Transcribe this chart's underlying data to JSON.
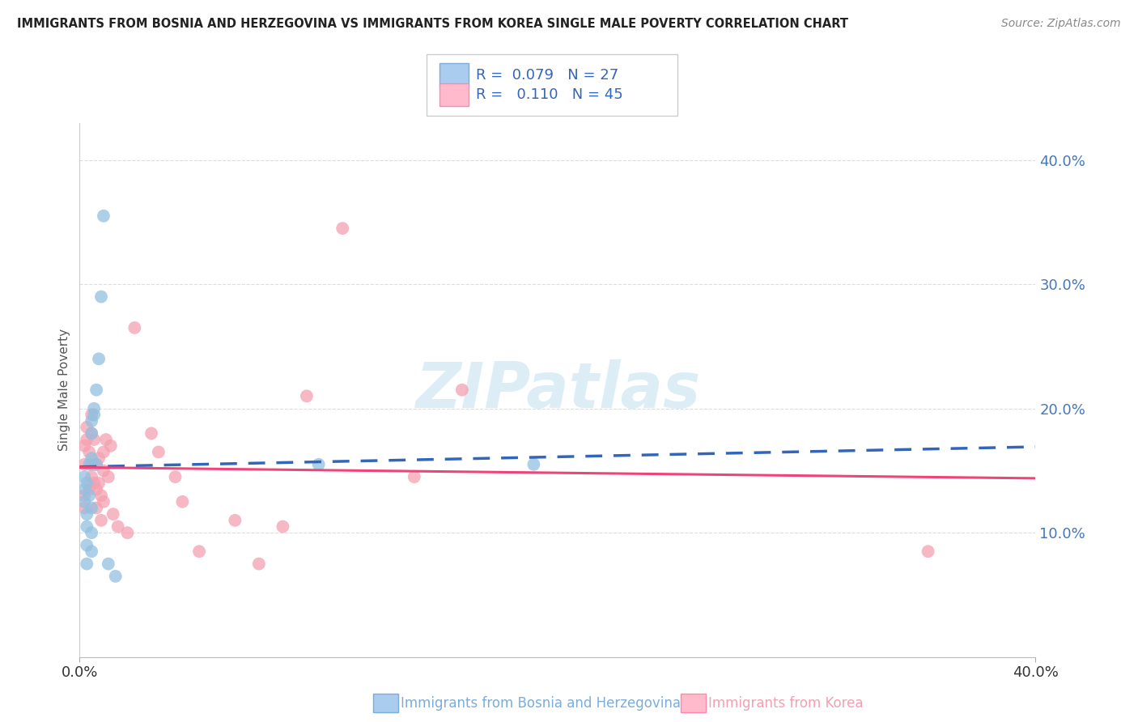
{
  "title": "IMMIGRANTS FROM BOSNIA AND HERZEGOVINA VS IMMIGRANTS FROM KOREA SINGLE MALE POVERTY CORRELATION CHART",
  "source": "Source: ZipAtlas.com",
  "ylabel": "Single Male Poverty",
  "legend1_R": "0.079",
  "legend1_N": "27",
  "legend2_R": "0.110",
  "legend2_N": "45",
  "legend1_label": "Immigrants from Bosnia and Herzegovina",
  "legend2_label": "Immigrants from Korea",
  "blue_scatter_color": "#92C0E0",
  "pink_scatter_color": "#F4A0B0",
  "trend_blue_color": "#3366BB",
  "trend_pink_color": "#EE4477",
  "watermark": "ZIPatlas",
  "xlim": [
    0.0,
    0.4
  ],
  "ylim": [
    0.0,
    0.43
  ],
  "yticks": [
    0.0,
    0.1,
    0.2,
    0.3,
    0.4
  ],
  "blue_x": [
    0.002,
    0.002,
    0.002,
    0.003,
    0.003,
    0.003,
    0.003,
    0.003,
    0.004,
    0.004,
    0.005,
    0.005,
    0.005,
    0.005,
    0.005,
    0.005,
    0.006,
    0.006,
    0.007,
    0.007,
    0.008,
    0.009,
    0.01,
    0.012,
    0.015,
    0.1,
    0.19
  ],
  "blue_y": [
    0.145,
    0.135,
    0.125,
    0.14,
    0.115,
    0.105,
    0.09,
    0.075,
    0.155,
    0.13,
    0.19,
    0.18,
    0.16,
    0.12,
    0.1,
    0.085,
    0.2,
    0.195,
    0.215,
    0.155,
    0.24,
    0.29,
    0.355,
    0.075,
    0.065,
    0.155,
    0.155
  ],
  "pink_x": [
    0.002,
    0.002,
    0.002,
    0.002,
    0.003,
    0.003,
    0.004,
    0.004,
    0.005,
    0.005,
    0.005,
    0.005,
    0.006,
    0.006,
    0.006,
    0.007,
    0.007,
    0.007,
    0.008,
    0.008,
    0.009,
    0.009,
    0.01,
    0.01,
    0.01,
    0.011,
    0.012,
    0.013,
    0.014,
    0.016,
    0.02,
    0.023,
    0.03,
    0.033,
    0.04,
    0.043,
    0.05,
    0.065,
    0.075,
    0.085,
    0.095,
    0.11,
    0.14,
    0.16,
    0.355
  ],
  "pink_y": [
    0.17,
    0.155,
    0.13,
    0.12,
    0.185,
    0.175,
    0.165,
    0.135,
    0.195,
    0.18,
    0.155,
    0.145,
    0.175,
    0.155,
    0.14,
    0.155,
    0.135,
    0.12,
    0.16,
    0.14,
    0.13,
    0.11,
    0.165,
    0.15,
    0.125,
    0.175,
    0.145,
    0.17,
    0.115,
    0.105,
    0.1,
    0.265,
    0.18,
    0.165,
    0.145,
    0.125,
    0.085,
    0.11,
    0.075,
    0.105,
    0.21,
    0.345,
    0.145,
    0.215,
    0.085
  ]
}
